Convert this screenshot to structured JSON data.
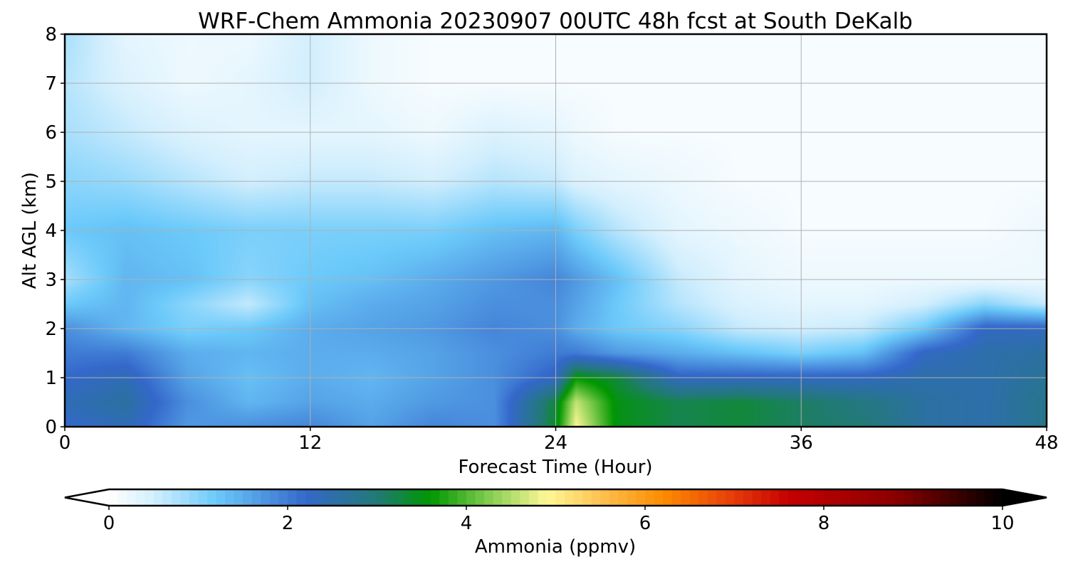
{
  "chart_data": {
    "type": "heatmap",
    "title": "WRF-Chem Ammonia  20230907 00UTC 48h fcst at South DeKalb",
    "xlabel": "Forecast Time (Hour)",
    "ylabel": "Alt AGL (km)",
    "xlim": [
      0,
      48
    ],
    "ylim": [
      0,
      8
    ],
    "x_ticks": [
      0,
      12,
      24,
      36,
      48
    ],
    "y_ticks": [
      0,
      1,
      2,
      3,
      4,
      5,
      6,
      7,
      8
    ],
    "grid": true,
    "colorbar": {
      "label": "Ammonia  (ppmv)",
      "range": [
        0,
        10
      ],
      "ticks": [
        0,
        2,
        4,
        6,
        8,
        10
      ],
      "extend": "both",
      "colormap": [
        {
          "v": 0.0,
          "c": "#ffffff"
        },
        {
          "v": 0.5,
          "c": "#d3effd"
        },
        {
          "v": 1.2,
          "c": "#6ccafa"
        },
        {
          "v": 2.2,
          "c": "#3468cb"
        },
        {
          "v": 3.0,
          "c": "#227a76"
        },
        {
          "v": 3.6,
          "c": "#009700"
        },
        {
          "v": 4.3,
          "c": "#8cd055"
        },
        {
          "v": 4.9,
          "c": "#fff896"
        },
        {
          "v": 5.6,
          "c": "#fdb945"
        },
        {
          "v": 6.2,
          "c": "#fd8c00"
        },
        {
          "v": 7.0,
          "c": "#e53b0a"
        },
        {
          "v": 7.6,
          "c": "#c60000"
        },
        {
          "v": 8.8,
          "c": "#8a0000"
        },
        {
          "v": 10.0,
          "c": "#000000"
        }
      ]
    },
    "x_hours": [
      0,
      3,
      6,
      9,
      12,
      15,
      18,
      21,
      24,
      25,
      27,
      30,
      33,
      36,
      39,
      42,
      45,
      48
    ],
    "z_km": [
      0,
      0.5,
      1,
      1.5,
      2,
      2.5,
      3,
      4,
      5,
      6,
      7,
      8
    ],
    "values_ppmv_by_altitude": [
      [
        2.2,
        2.4,
        1.7,
        1.8,
        1.9,
        1.6,
        1.9,
        1.8,
        3.4,
        4.9,
        3.5,
        3.2,
        3.3,
        3.1,
        3.0,
        2.6,
        2.5,
        2.8
      ],
      [
        2.4,
        2.6,
        1.8,
        1.4,
        1.6,
        1.5,
        1.7,
        1.8,
        3.3,
        4.6,
        3.5,
        3.2,
        3.3,
        3.1,
        2.9,
        2.6,
        2.5,
        2.8
      ],
      [
        2.2,
        2.4,
        1.6,
        1.3,
        1.5,
        1.4,
        1.6,
        1.8,
        2.3,
        3.6,
        3.3,
        2.3,
        2.3,
        2.3,
        2.3,
        2.5,
        2.5,
        2.7
      ],
      [
        2.0,
        2.0,
        1.5,
        1.4,
        1.5,
        1.5,
        1.6,
        1.8,
        2.0,
        2.0,
        1.7,
        1.5,
        1.3,
        1.1,
        1.3,
        2.3,
        2.5,
        2.6
      ],
      [
        1.8,
        1.4,
        1.1,
        1.2,
        1.5,
        1.6,
        1.7,
        1.9,
        1.8,
        1.5,
        1.2,
        1.0,
        0.6,
        0.5,
        0.6,
        1.2,
        2.3,
        2.3
      ],
      [
        1.2,
        1.4,
        1.0,
        0.6,
        1.3,
        1.5,
        1.6,
        1.8,
        1.8,
        1.6,
        1.2,
        0.7,
        0.4,
        0.3,
        0.3,
        0.5,
        1.0,
        0.6
      ],
      [
        0.8,
        1.4,
        1.3,
        1.0,
        1.2,
        1.3,
        1.5,
        1.7,
        1.9,
        1.7,
        1.3,
        0.6,
        0.3,
        0.2,
        0.2,
        0.2,
        0.2,
        0.2
      ],
      [
        1.2,
        1.3,
        1.2,
        1.1,
        1.1,
        1.1,
        1.1,
        1.3,
        1.4,
        1.1,
        0.7,
        0.3,
        0.2,
        0.1,
        0.1,
        0.1,
        0.1,
        0.2
      ],
      [
        1.0,
        0.9,
        0.7,
        0.5,
        0.6,
        0.6,
        0.5,
        0.7,
        0.6,
        0.4,
        0.3,
        0.2,
        0.1,
        0.1,
        0.1,
        0.1,
        0.1,
        0.1
      ],
      [
        0.8,
        0.6,
        0.4,
        0.3,
        0.3,
        0.3,
        0.2,
        0.4,
        0.3,
        0.2,
        0.1,
        0.1,
        0.1,
        0.1,
        0.1,
        0.1,
        0.1,
        0.1
      ],
      [
        0.7,
        0.4,
        0.2,
        0.3,
        0.5,
        0.2,
        0.1,
        0.1,
        0.1,
        0.1,
        0.1,
        0.1,
        0.1,
        0.1,
        0.1,
        0.1,
        0.1,
        0.1
      ],
      [
        0.8,
        0.3,
        0.2,
        0.2,
        0.5,
        0.2,
        0.1,
        0.1,
        0.1,
        0.1,
        0.1,
        0.1,
        0.1,
        0.1,
        0.1,
        0.1,
        0.1,
        0.1
      ]
    ]
  }
}
